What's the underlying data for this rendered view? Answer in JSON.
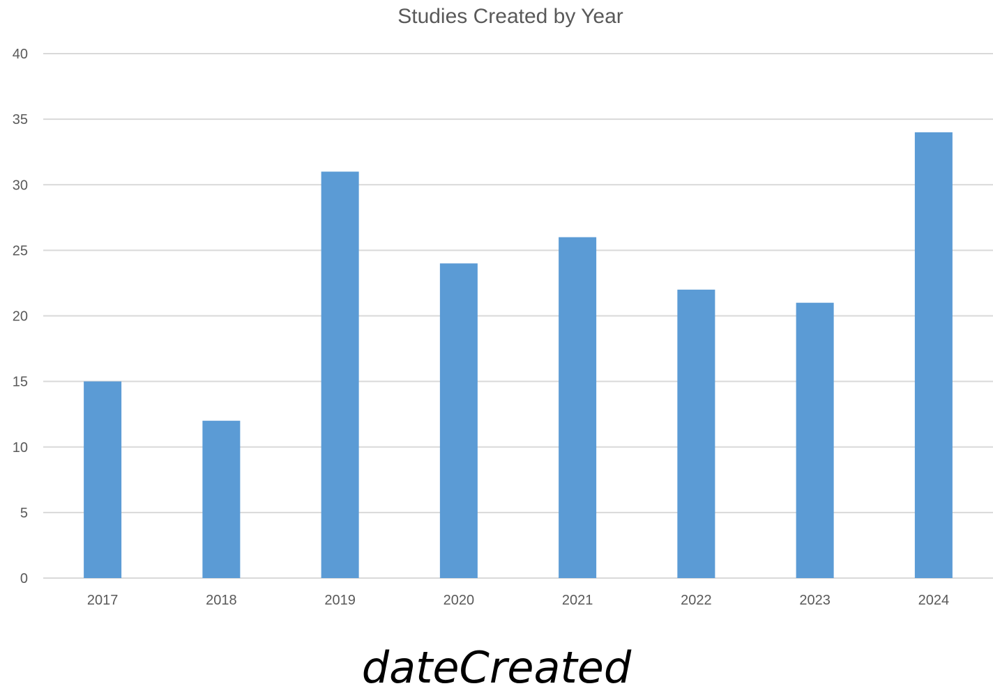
{
  "chart_data": {
    "type": "bar",
    "title": "Studies Created by Year",
    "categories": [
      "2017",
      "2018",
      "2019",
      "2020",
      "2021",
      "2022",
      "2023",
      "2024"
    ],
    "values": [
      15,
      12,
      31,
      24,
      26,
      22,
      21,
      34
    ],
    "y_ticks": [
      "0",
      "5",
      "10",
      "15",
      "20",
      "25",
      "30",
      "35",
      "40"
    ],
    "ylim": [
      0,
      40
    ],
    "xlabel": "",
    "ylabel": "",
    "grid": true,
    "legend": false,
    "bar_color": "#5B9BD5",
    "grid_color": "#D9D9D9",
    "text_color": "#595959"
  },
  "caption": "dateCreated"
}
